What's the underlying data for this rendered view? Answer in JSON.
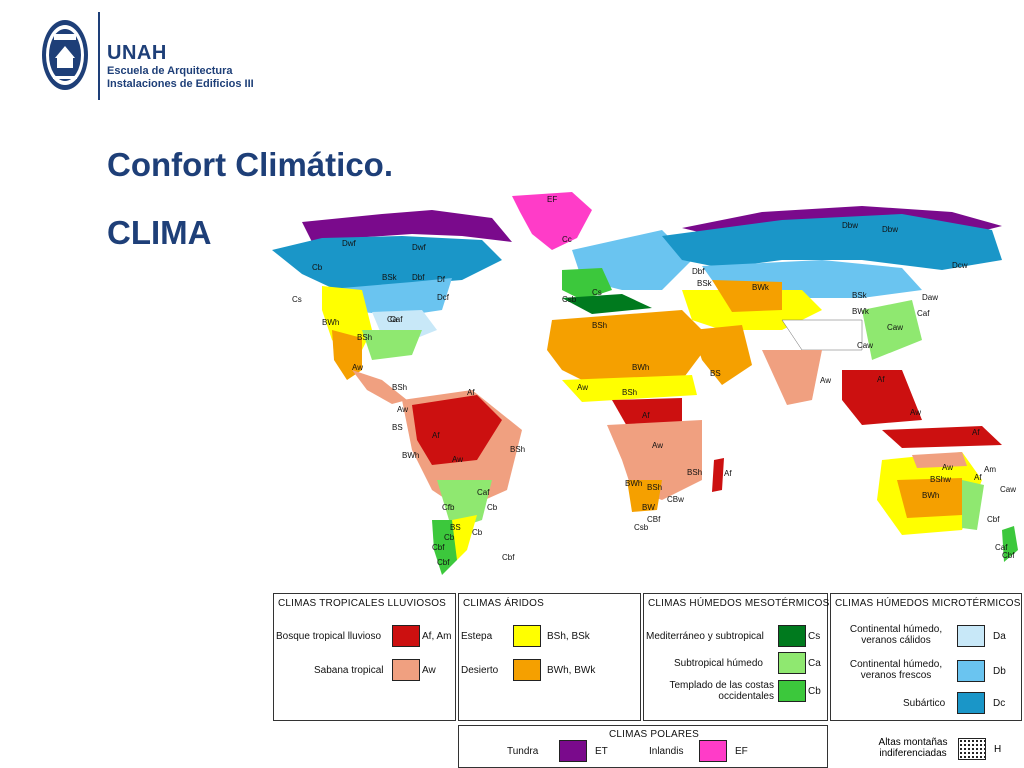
{
  "header": {
    "org": "UNAH",
    "school": "Escuela de Arquitectura",
    "course": "Instalaciones de Edificios III"
  },
  "slide": {
    "title": "Confort Climático.",
    "subtitle": "CLIMA"
  },
  "colors": {
    "brand": "#1e3f78",
    "af_am": "#cc1010",
    "aw": "#f0a080",
    "bs": "#ffff00",
    "bw": "#f5a000",
    "cs": "#007a1e",
    "ca": "#8fe870",
    "cb": "#3cc83c",
    "da": "#c8e8f8",
    "db": "#6ac4f0",
    "dc": "#1a96c8",
    "et": "#7a0a8c",
    "ef": "#ff3cc8",
    "ocean": "#ffffff"
  },
  "map": {
    "labels": [
      "EF",
      "Cc",
      "Dwf",
      "Dwf",
      "Df",
      "Cb",
      "BSk",
      "Dbf",
      "Dcf",
      "Ca",
      "Caf",
      "Cs",
      "BWh",
      "BSh",
      "Aw",
      "BSh",
      "Aw",
      "BS",
      "Af",
      "BWh",
      "Af",
      "Aw",
      "BSh",
      "Caf",
      "Cb",
      "Cfb",
      "Cb",
      "BS",
      "Cb",
      "Cbf",
      "Cbf",
      "Cbf",
      "Csb",
      "Cs",
      "BSh",
      "Aw",
      "BWh",
      "BSh",
      "BS",
      "Af",
      "Aw",
      "BSh",
      "Af",
      "BWh",
      "BSh",
      "CBw",
      "BW",
      "CBf",
      "Csb",
      "Dbf",
      "BSk",
      "BWk",
      "BSk",
      "BWk",
      "Caw",
      "Caf",
      "Dbw",
      "Dbw",
      "Dcw",
      "Daw",
      "Caw",
      "Aw",
      "Af",
      "Aw",
      "Af",
      "Aw",
      "Af",
      "BShw",
      "Am",
      "BWh",
      "Caw",
      "Cbf",
      "Caf",
      "Cbf"
    ]
  },
  "legend": {
    "tropical": {
      "heading": "CLIMAS TROPICALES LLUVIOSOS",
      "rows": [
        {
          "label": "Bosque tropical lluvioso",
          "code": "Af, Am"
        },
        {
          "label": "Sabana tropical",
          "code": "Aw"
        }
      ]
    },
    "arid": {
      "heading": "CLIMAS ÁRIDOS",
      "rows": [
        {
          "label": "Estepa",
          "code": "BSh, BSk"
        },
        {
          "label": "Desierto",
          "code": "BWh, BWk"
        }
      ]
    },
    "meso": {
      "heading": "CLIMAS HÚMEDOS MESOTÉRMICOS",
      "rows": [
        {
          "label": "Mediterráneo y subtropical",
          "code": "Cs"
        },
        {
          "label": "Subtropical húmedo",
          "code": "Ca"
        },
        {
          "label": "Templado de las costas occidentales",
          "code": "Cb"
        }
      ]
    },
    "micro": {
      "heading": "CLIMAS HÚMEDOS MICROTÉRMICOS",
      "rows": [
        {
          "label": "Continental húmedo, veranos cálidos",
          "code": "Da"
        },
        {
          "label": "Continental húmedo, veranos frescos",
          "code": "Db"
        },
        {
          "label": "Subártico",
          "code": "Dc"
        }
      ]
    },
    "polar": {
      "heading": "CLIMAS POLARES",
      "tundra_label": "Tundra",
      "tundra_code": "ET",
      "inlandis_label": "Inlandis",
      "inlandis_code": "EF"
    },
    "highland": {
      "label": "Altas montañas indiferenciadas",
      "code": "H"
    }
  }
}
